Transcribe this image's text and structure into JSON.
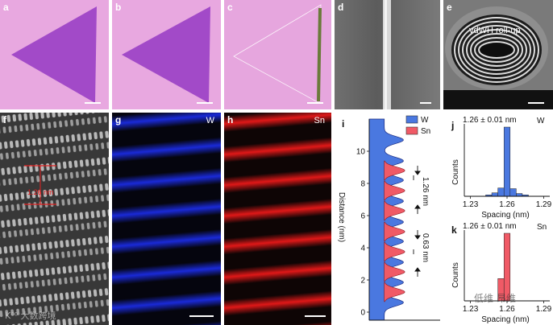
{
  "panels": {
    "a": {
      "label": "a"
    },
    "b": {
      "label": "b"
    },
    "c": {
      "label": "c"
    },
    "d": {
      "label": "d"
    },
    "e": {
      "label": "e",
      "annotation": "vdWH roll-up"
    },
    "f": {
      "label": "f",
      "measurement": "1.26 nm"
    },
    "g": {
      "label": "g",
      "element": "W"
    },
    "h": {
      "label": "h",
      "element": "Sn"
    },
    "i": {
      "label": "i"
    },
    "j": {
      "label": "j",
      "value_text": "1.26 ± 0.01 nm",
      "element": "W"
    },
    "k": {
      "label": "k",
      "value_text": "1.26 ± 0.01 nm",
      "element": "Sn"
    }
  },
  "colors": {
    "pink_bg": "#e8a8e0",
    "triangle": "#a24ac8",
    "w_blue": "#4a78e0",
    "sn_red": "#f05a66",
    "eds_blue": "#1a2ad8",
    "eds_red": "#e01818"
  },
  "chart_data": [
    {
      "type": "area",
      "panel": "i",
      "ylabel": "Distance (nm)",
      "ylim": [
        -0.5,
        12
      ],
      "yticks": [
        "0",
        "2",
        "4",
        "6",
        "8",
        "10"
      ],
      "legend": [
        "W",
        "Sn"
      ],
      "legend_position": "top-right",
      "annotations": [
        "1.26 nm",
        "0.63 nm"
      ],
      "w_peaks": [
        0.6,
        1.85,
        3.1,
        4.4,
        5.6,
        6.9,
        8.2,
        9.4,
        10.7
      ],
      "sn_peaks": [
        1.25,
        2.5,
        3.75,
        5.0,
        6.3,
        7.55,
        8.8
      ]
    },
    {
      "type": "bar",
      "panel": "j",
      "xlabel": "Spacing (nm)",
      "ylabel": "Counts",
      "xticks": [
        "1.23",
        "1.26",
        "1.29"
      ],
      "xlim": [
        1.225,
        1.295
      ],
      "bin_width": 0.005,
      "bins": [
        1.245,
        1.25,
        1.255,
        1.26,
        1.265,
        1.27,
        1.275
      ],
      "values": [
        0.02,
        0.05,
        0.12,
        1.0,
        0.11,
        0.04,
        0.02
      ]
    },
    {
      "type": "bar",
      "panel": "k",
      "xlabel": "Spacing (nm)",
      "ylabel": "Counts",
      "xticks": [
        "1.23",
        "1.26",
        "1.29"
      ],
      "xlim": [
        1.225,
        1.295
      ],
      "bin_width": 0.005,
      "bins": [
        1.255,
        1.26
      ],
      "values": [
        0.33,
        1.0
      ]
    }
  ],
  "watermarks": {
    "left": "K⁰⁰ 大数跨境",
    "right": "低维 昂维"
  }
}
